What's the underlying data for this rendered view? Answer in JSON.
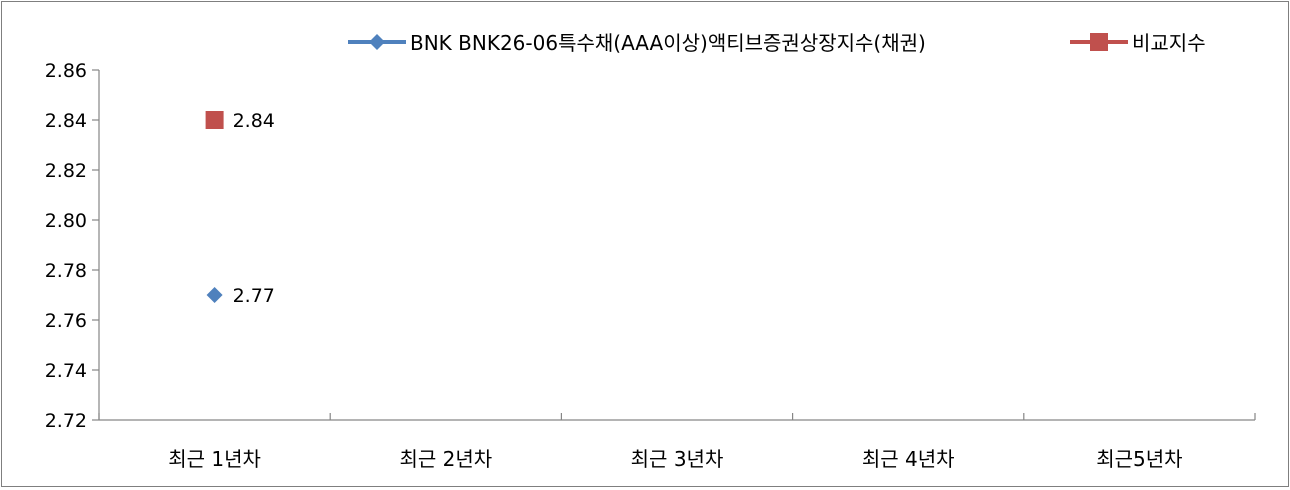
{
  "chart_data": {
    "type": "line",
    "title": "",
    "xlabel": "",
    "ylabel": "",
    "categories": [
      "최근 1년차",
      "최근 2년차",
      "최근 3년차",
      "최근 4년차",
      "최근5년차"
    ],
    "ylim": [
      2.72,
      2.86
    ],
    "yticks": [
      "2.72",
      "2.74",
      "2.76",
      "2.78",
      "2.80",
      "2.82",
      "2.84",
      "2.86"
    ],
    "grid": false,
    "legend_position": "top-right",
    "series": [
      {
        "name": "BNK BNK26-06특수채(AAA이상)액티브증권상장지수(채권)",
        "color": "#4f81bd",
        "marker": "diamond",
        "values": [
          2.77,
          null,
          null,
          null,
          null
        ],
        "labels": [
          "2.77",
          "",
          "",
          "",
          ""
        ]
      },
      {
        "name": "비교지수",
        "color": "#c0504d",
        "marker": "square",
        "values": [
          2.84,
          null,
          null,
          null,
          null
        ],
        "labels": [
          "2.84",
          "",
          "",
          "",
          ""
        ]
      }
    ]
  }
}
